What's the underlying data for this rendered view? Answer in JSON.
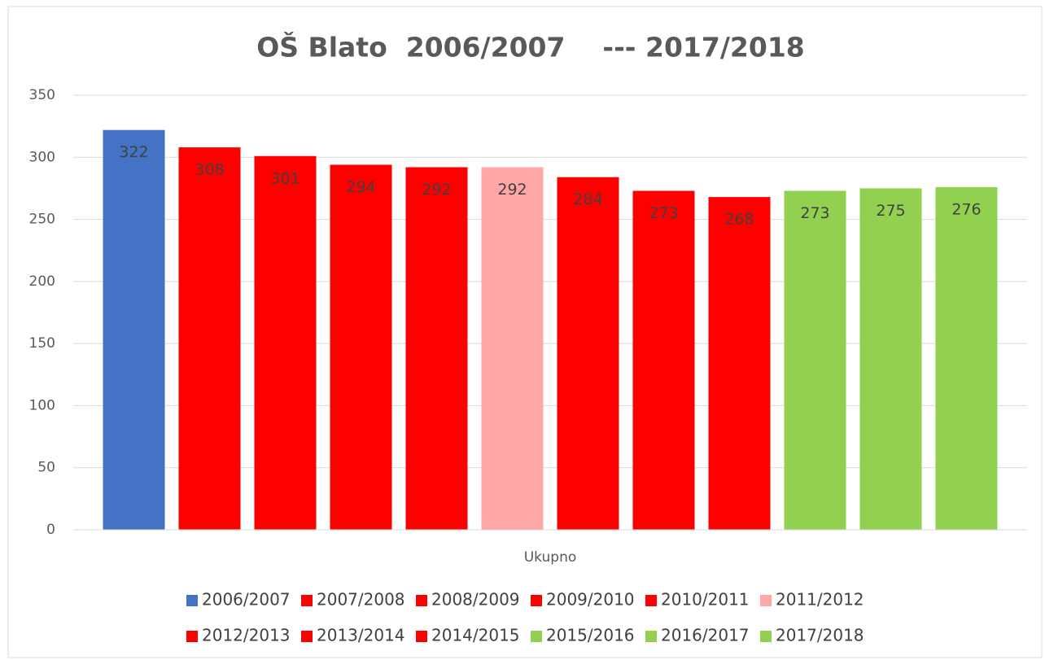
{
  "chart_data": {
    "type": "bar",
    "title": "OŠ Blato  2006/2007    --- 2017/2018",
    "categories": [
      "Ukupno"
    ],
    "series": [
      {
        "name": "2006/2007",
        "color": "#4472c4",
        "values": [
          322
        ]
      },
      {
        "name": "2007/2008",
        "color": "#ff0000",
        "values": [
          308
        ]
      },
      {
        "name": "2008/2009",
        "color": "#ff0000",
        "values": [
          301
        ]
      },
      {
        "name": "2009/2010",
        "color": "#ff0000",
        "values": [
          294
        ]
      },
      {
        "name": "2010/2011",
        "color": "#ff0000",
        "values": [
          292
        ]
      },
      {
        "name": "2011/2012",
        "color": "#ffa6a6",
        "values": [
          292
        ]
      },
      {
        "name": "2012/2013",
        "color": "#ff0000",
        "values": [
          284
        ]
      },
      {
        "name": "2013/2014",
        "color": "#ff0000",
        "values": [
          273
        ]
      },
      {
        "name": "2014/2015",
        "color": "#ff0000",
        "values": [
          268
        ]
      },
      {
        "name": "2015/2016",
        "color": "#92d050",
        "values": [
          273
        ]
      },
      {
        "name": "2016/2017",
        "color": "#92d050",
        "values": [
          275
        ]
      },
      {
        "name": "2017/2018",
        "color": "#92d050",
        "values": [
          276
        ]
      }
    ],
    "ylim": [
      0,
      350
    ],
    "yticks": [
      0,
      50,
      100,
      150,
      200,
      250,
      300,
      350
    ],
    "grid": true,
    "legend": "bottom",
    "data_labels": true
  }
}
